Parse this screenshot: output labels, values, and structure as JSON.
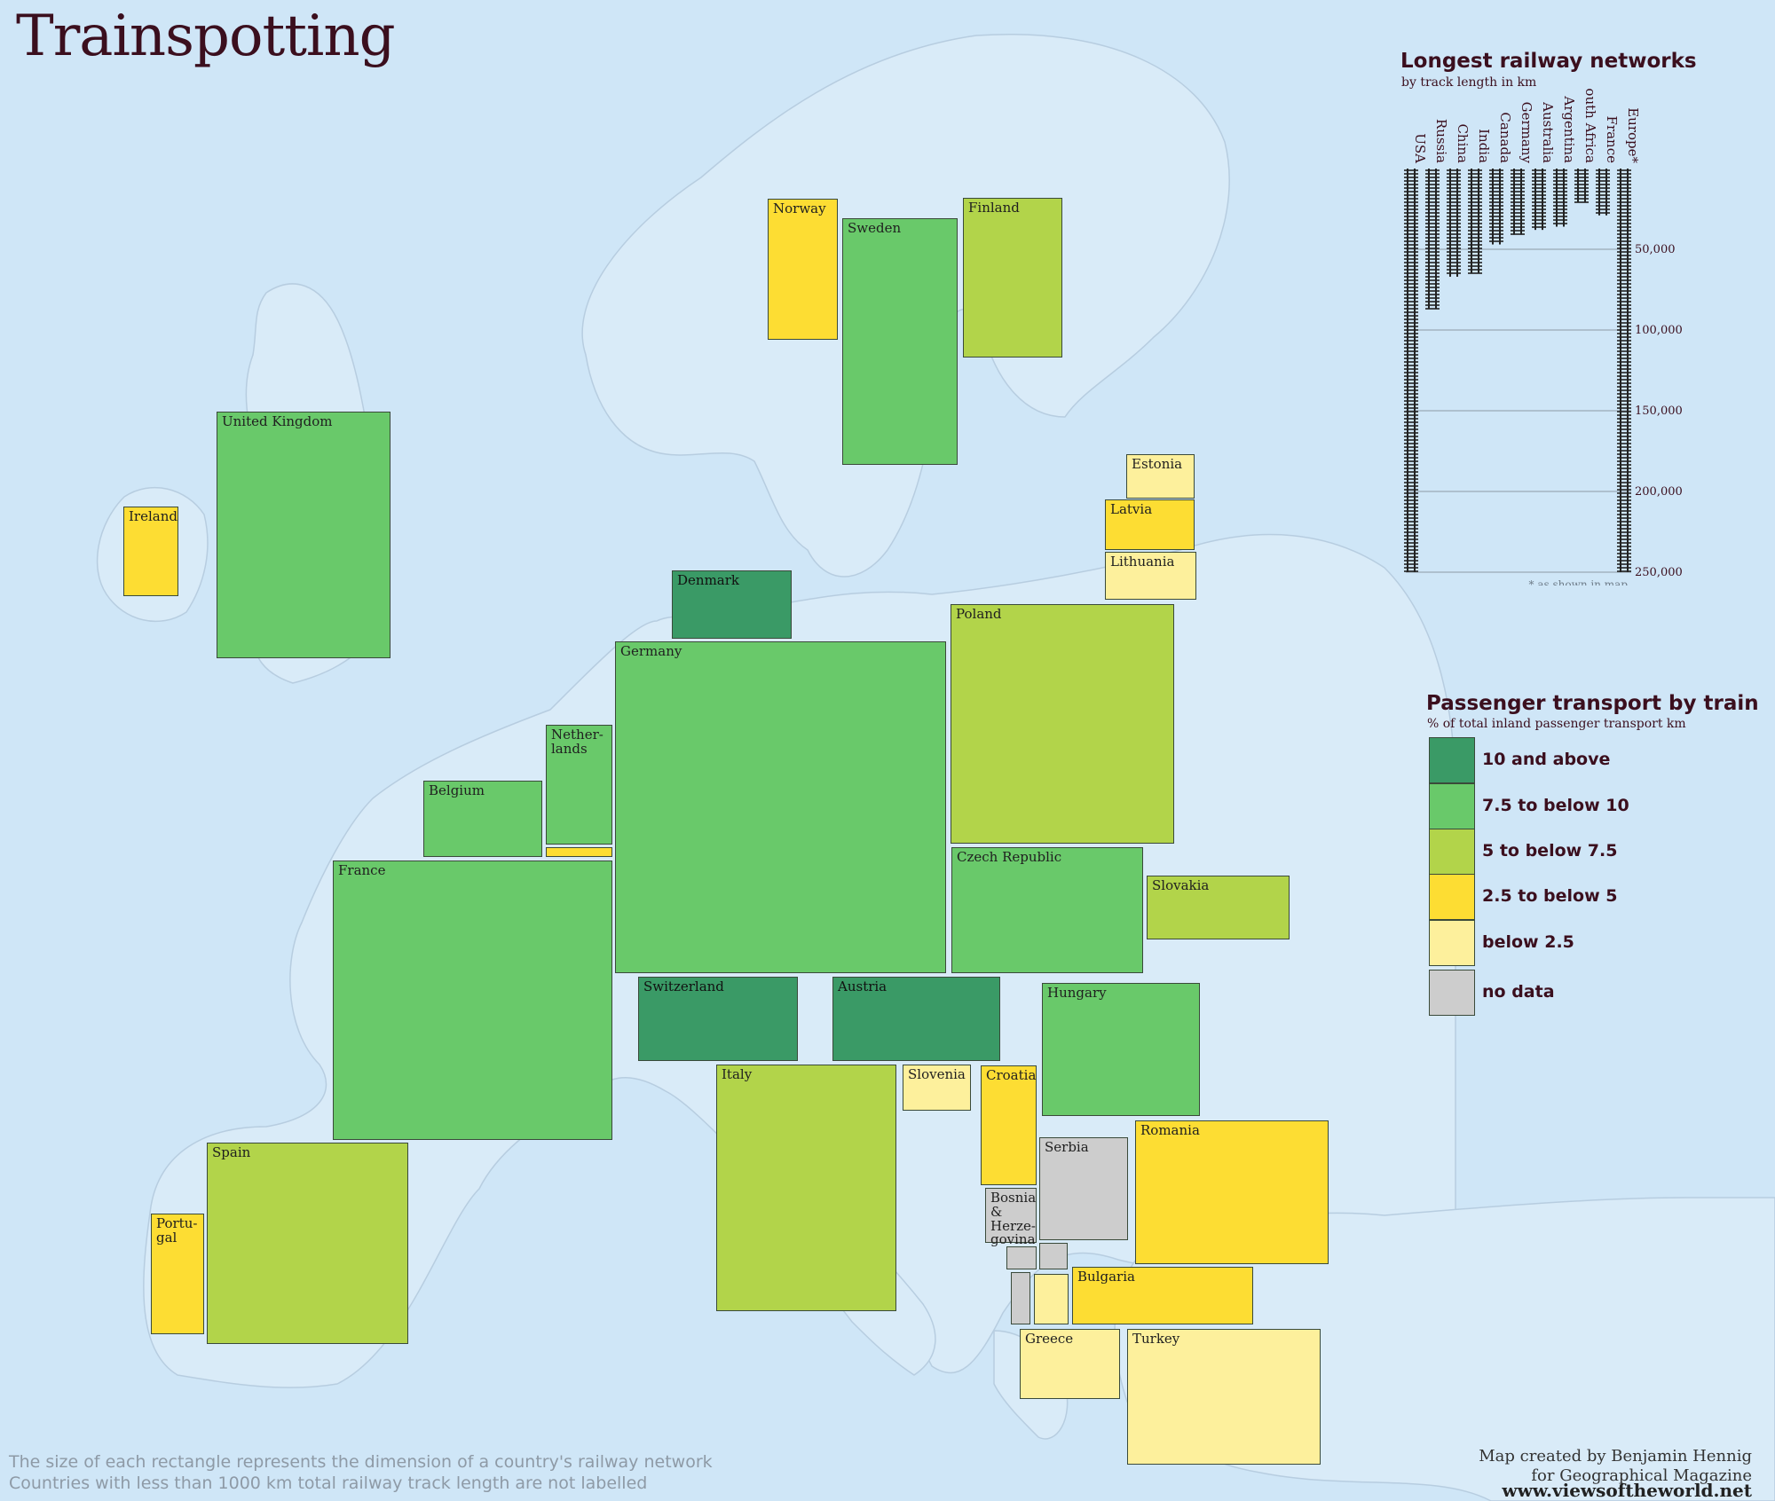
{
  "title": "Trainspotting",
  "countries": [
    {
      "name": "Norway",
      "category": "2.5 to below 5"
    },
    {
      "name": "Sweden",
      "category": "7.5 to below 10"
    },
    {
      "name": "Finland",
      "category": "5 to below 7.5"
    },
    {
      "name": "United Kingdom",
      "category": "7.5 to below 10"
    },
    {
      "name": "Ireland",
      "category": "2.5 to below 5"
    },
    {
      "name": "Estonia",
      "category": "below 2.5"
    },
    {
      "name": "Latvia",
      "category": "2.5 to below 5"
    },
    {
      "name": "Lithuania",
      "category": "below 2.5"
    },
    {
      "name": "Denmark",
      "category": "10 and above"
    },
    {
      "name": "Germany",
      "category": "7.5 to below 10"
    },
    {
      "name": "Poland",
      "category": "5 to below 7.5"
    },
    {
      "name": "Nether-\nlands",
      "category": "7.5 to below 10"
    },
    {
      "name": "Belgium",
      "category": "7.5 to below 10"
    },
    {
      "name": "",
      "category": "2.5 to below 5"
    },
    {
      "name": "France",
      "category": "7.5 to below 10"
    },
    {
      "name": "Czech Republic",
      "category": "7.5 to below 10"
    },
    {
      "name": "Slovakia",
      "category": "5 to below 7.5"
    },
    {
      "name": "Switzerland",
      "category": "10 and above"
    },
    {
      "name": "Austria",
      "category": "10 and above"
    },
    {
      "name": "Hungary",
      "category": "7.5 to below 10"
    },
    {
      "name": "Italy",
      "category": "5 to below 7.5"
    },
    {
      "name": "Slovenia",
      "category": "below 2.5"
    },
    {
      "name": "Croatia",
      "category": "2.5 to below 5"
    },
    {
      "name": "Serbia",
      "category": "no data"
    },
    {
      "name": "Romania",
      "category": "2.5 to below 5"
    },
    {
      "name": "Bosnia\n& Herze-\ngovina",
      "category": "no data"
    },
    {
      "name": "",
      "category": "no data"
    },
    {
      "name": "",
      "category": "no data"
    },
    {
      "name": "",
      "category": "no data"
    },
    {
      "name": "",
      "category": "below 2.5"
    },
    {
      "name": "Bulgaria",
      "category": "2.5 to below 5"
    },
    {
      "name": "Spain",
      "category": "5 to below 7.5"
    },
    {
      "name": "Portu-\ngal",
      "category": "2.5 to below 5"
    },
    {
      "name": "Greece",
      "category": "below 2.5"
    },
    {
      "name": "Turkey",
      "category": "below 2.5"
    }
  ],
  "railway_chart": {
    "title": "Longest railway networks",
    "subtitle": "by track length in km",
    "footnote": "* as shown in map",
    "chart_data": {
      "type": "bar",
      "orientation": "vertical-downward",
      "categories": [
        "USA",
        "Russia",
        "China",
        "India",
        "Canada",
        "Germany",
        "Australia",
        "Argentina",
        "South Africa",
        "France",
        "Europe*"
      ],
      "values": [
        250000,
        87000,
        67000,
        65000,
        47000,
        41000,
        38000,
        36000,
        21000,
        29000,
        250000
      ],
      "ylim": [
        0,
        250000
      ],
      "yticks": [
        "50,000",
        "100,000",
        "150,000",
        "200,000",
        "250,000"
      ],
      "ytick_values": [
        50000,
        100000,
        150000,
        200000,
        250000
      ]
    }
  },
  "legend": {
    "title": "Passenger transport by train",
    "subtitle": "% of total inland passenger transport km",
    "items": [
      {
        "label": "10 and above",
        "color": "#3a9a66"
      },
      {
        "label": "7.5 to below 10",
        "color": "#69c96a"
      },
      {
        "label": "5 to below 7.5",
        "color": "#b2d44a"
      },
      {
        "label": "2.5 to below 5",
        "color": "#fddd33"
      },
      {
        "label": "below 2.5",
        "color": "#fdf09c"
      },
      {
        "label": "no data",
        "color": "#cdcdcd"
      }
    ]
  },
  "footnotes": {
    "line1": "The size of each rectangle represents the dimension of a country's railway network",
    "line2": "Countries with less than 1000 km total railway track length are not labelled"
  },
  "credits": {
    "line1": "Map created by Benjamin Hennig",
    "line2": "for Geographical Magazine",
    "url": "www.viewsoftheworld.net"
  }
}
